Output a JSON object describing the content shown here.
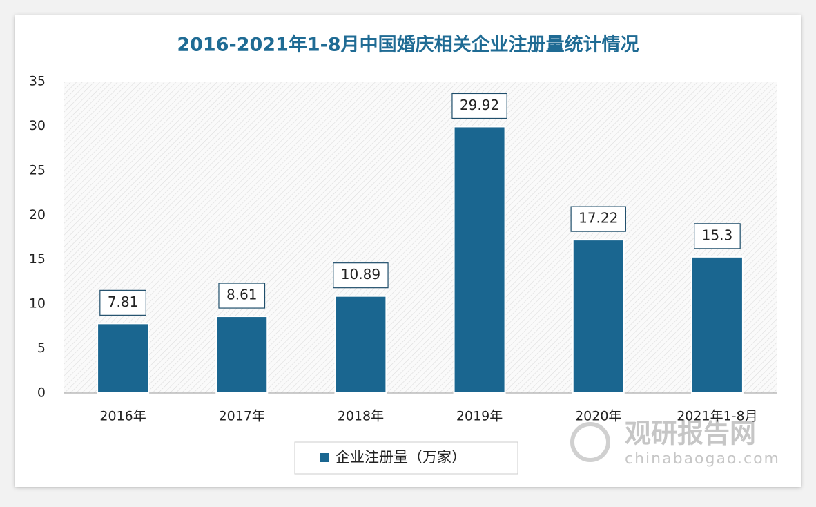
{
  "chart_data": {
    "type": "bar",
    "title": "2016-2021年1-8月中国婚庆相关企业注册量统计情况",
    "categories": [
      "2016年",
      "2017年",
      "2018年",
      "2019年",
      "2020年",
      "2021年1-8月"
    ],
    "series": [
      {
        "name": "企业注册量（万家）",
        "color": "#1a6690",
        "values": [
          7.81,
          8.61,
          10.89,
          29.92,
          17.22,
          15.3
        ]
      }
    ],
    "ylim": [
      0,
      35
    ],
    "yticks": [
      0,
      5,
      10,
      15,
      20,
      25,
      30,
      35
    ],
    "legend": "bottom",
    "watermark": {
      "brand": "观研报告网",
      "site": "chinabaogao.com"
    }
  }
}
